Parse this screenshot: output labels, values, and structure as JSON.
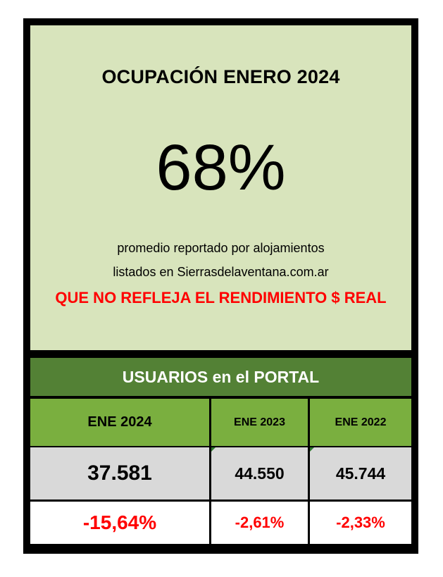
{
  "occupancy": {
    "title": "OCUPACIÓN ENERO 2024",
    "value": "68%",
    "note_line1": "promedio reportado por alojamientos",
    "note_line2": "listados en Sierrasdelaventana.com.ar",
    "warning": "QUE NO REFLEJA EL RENDIMIENTO $ REAL"
  },
  "users": {
    "header": "USUARIOS en el PORTAL",
    "columns": [
      {
        "label": "ENE 2024",
        "value": "37.581",
        "change": "-15,64%"
      },
      {
        "label": "ENE 2023",
        "value": "44.550",
        "change": "-2,61%"
      },
      {
        "label": "ENE 2022",
        "value": "45.744",
        "change": "-2,33%"
      }
    ]
  },
  "colors": {
    "panel_bg": "#d8e4bc",
    "header_green": "#538135",
    "column_green": "#7aaf3f",
    "value_gray": "#d9d9d9",
    "negative_red": "#ff0000"
  }
}
